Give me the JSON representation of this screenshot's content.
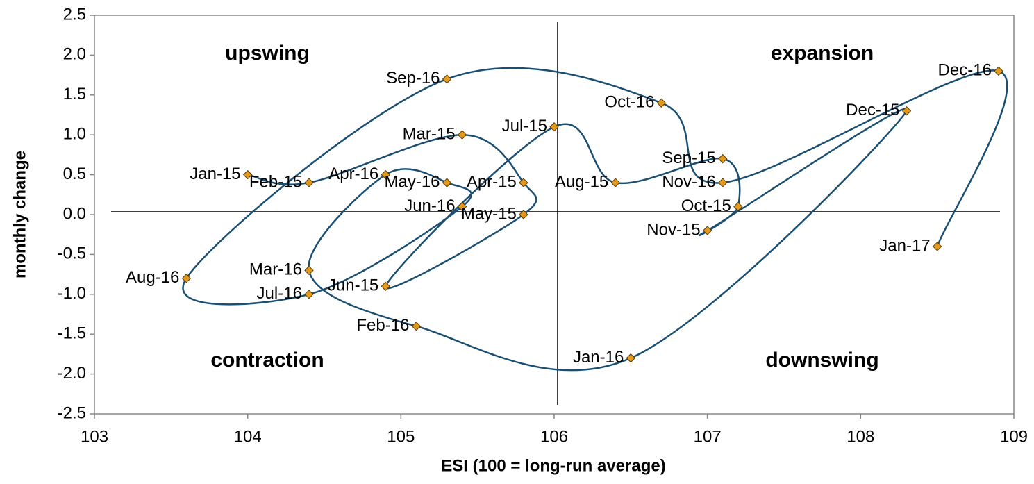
{
  "chart_data": {
    "type": "scatter",
    "x_label": "ESI (100 = long-run average)",
    "y_label": "monthly change",
    "labels": [
      "Jan-15",
      "Feb-15",
      "Mar-15",
      "Apr-15",
      "May-15",
      "Jun-15",
      "Jul-15",
      "Aug-15",
      "Sep-15",
      "Oct-15",
      "Nov-15",
      "Dec-15",
      "Jan-16",
      "Feb-16",
      "Mar-16",
      "Apr-16",
      "May-16",
      "Jun-16",
      "Jul-16",
      "Aug-16",
      "Sep-16",
      "Oct-16",
      "Nov-16",
      "Dec-16",
      "Jan-17"
    ],
    "x": [
      104.0,
      104.4,
      105.4,
      105.8,
      105.8,
      104.9,
      106.0,
      106.4,
      107.1,
      107.2,
      107.0,
      108.3,
      106.5,
      105.1,
      104.4,
      104.9,
      105.3,
      105.4,
      104.4,
      103.6,
      105.3,
      106.7,
      107.1,
      108.9,
      108.5
    ],
    "values": [
      0.5,
      0.4,
      1.0,
      0.4,
      0.0,
      -0.9,
      1.1,
      0.4,
      0.7,
      0.1,
      -0.2,
      1.3,
      -1.8,
      -1.4,
      -0.7,
      0.5,
      0.4,
      0.1,
      -1.0,
      -0.8,
      1.7,
      1.4,
      0.4,
      1.8,
      -0.4
    ],
    "line_color": "#1b4f72",
    "marker_color": "#e39a1c",
    "quadrants": [
      "upswing",
      "expansion",
      "contraction",
      "downswing"
    ],
    "xlim": [
      103,
      109
    ],
    "xticks": [
      103,
      104,
      105,
      106,
      107,
      108,
      109
    ],
    "ylim": [
      -2.5,
      2.5
    ],
    "yticks": [
      2.5,
      {
        "value": 2.0,
        "label": "2.0"
      },
      1.5,
      {
        "value": 1.0,
        "label": "1.0"
      },
      0.5,
      {
        "value": 0.0,
        "label": "0.0"
      },
      -0.5,
      {
        "value": -1.0,
        "label": "-1.0"
      },
      -1.5,
      {
        "value": -2.0,
        "label": "-2.0"
      },
      -2.5
    ]
  }
}
